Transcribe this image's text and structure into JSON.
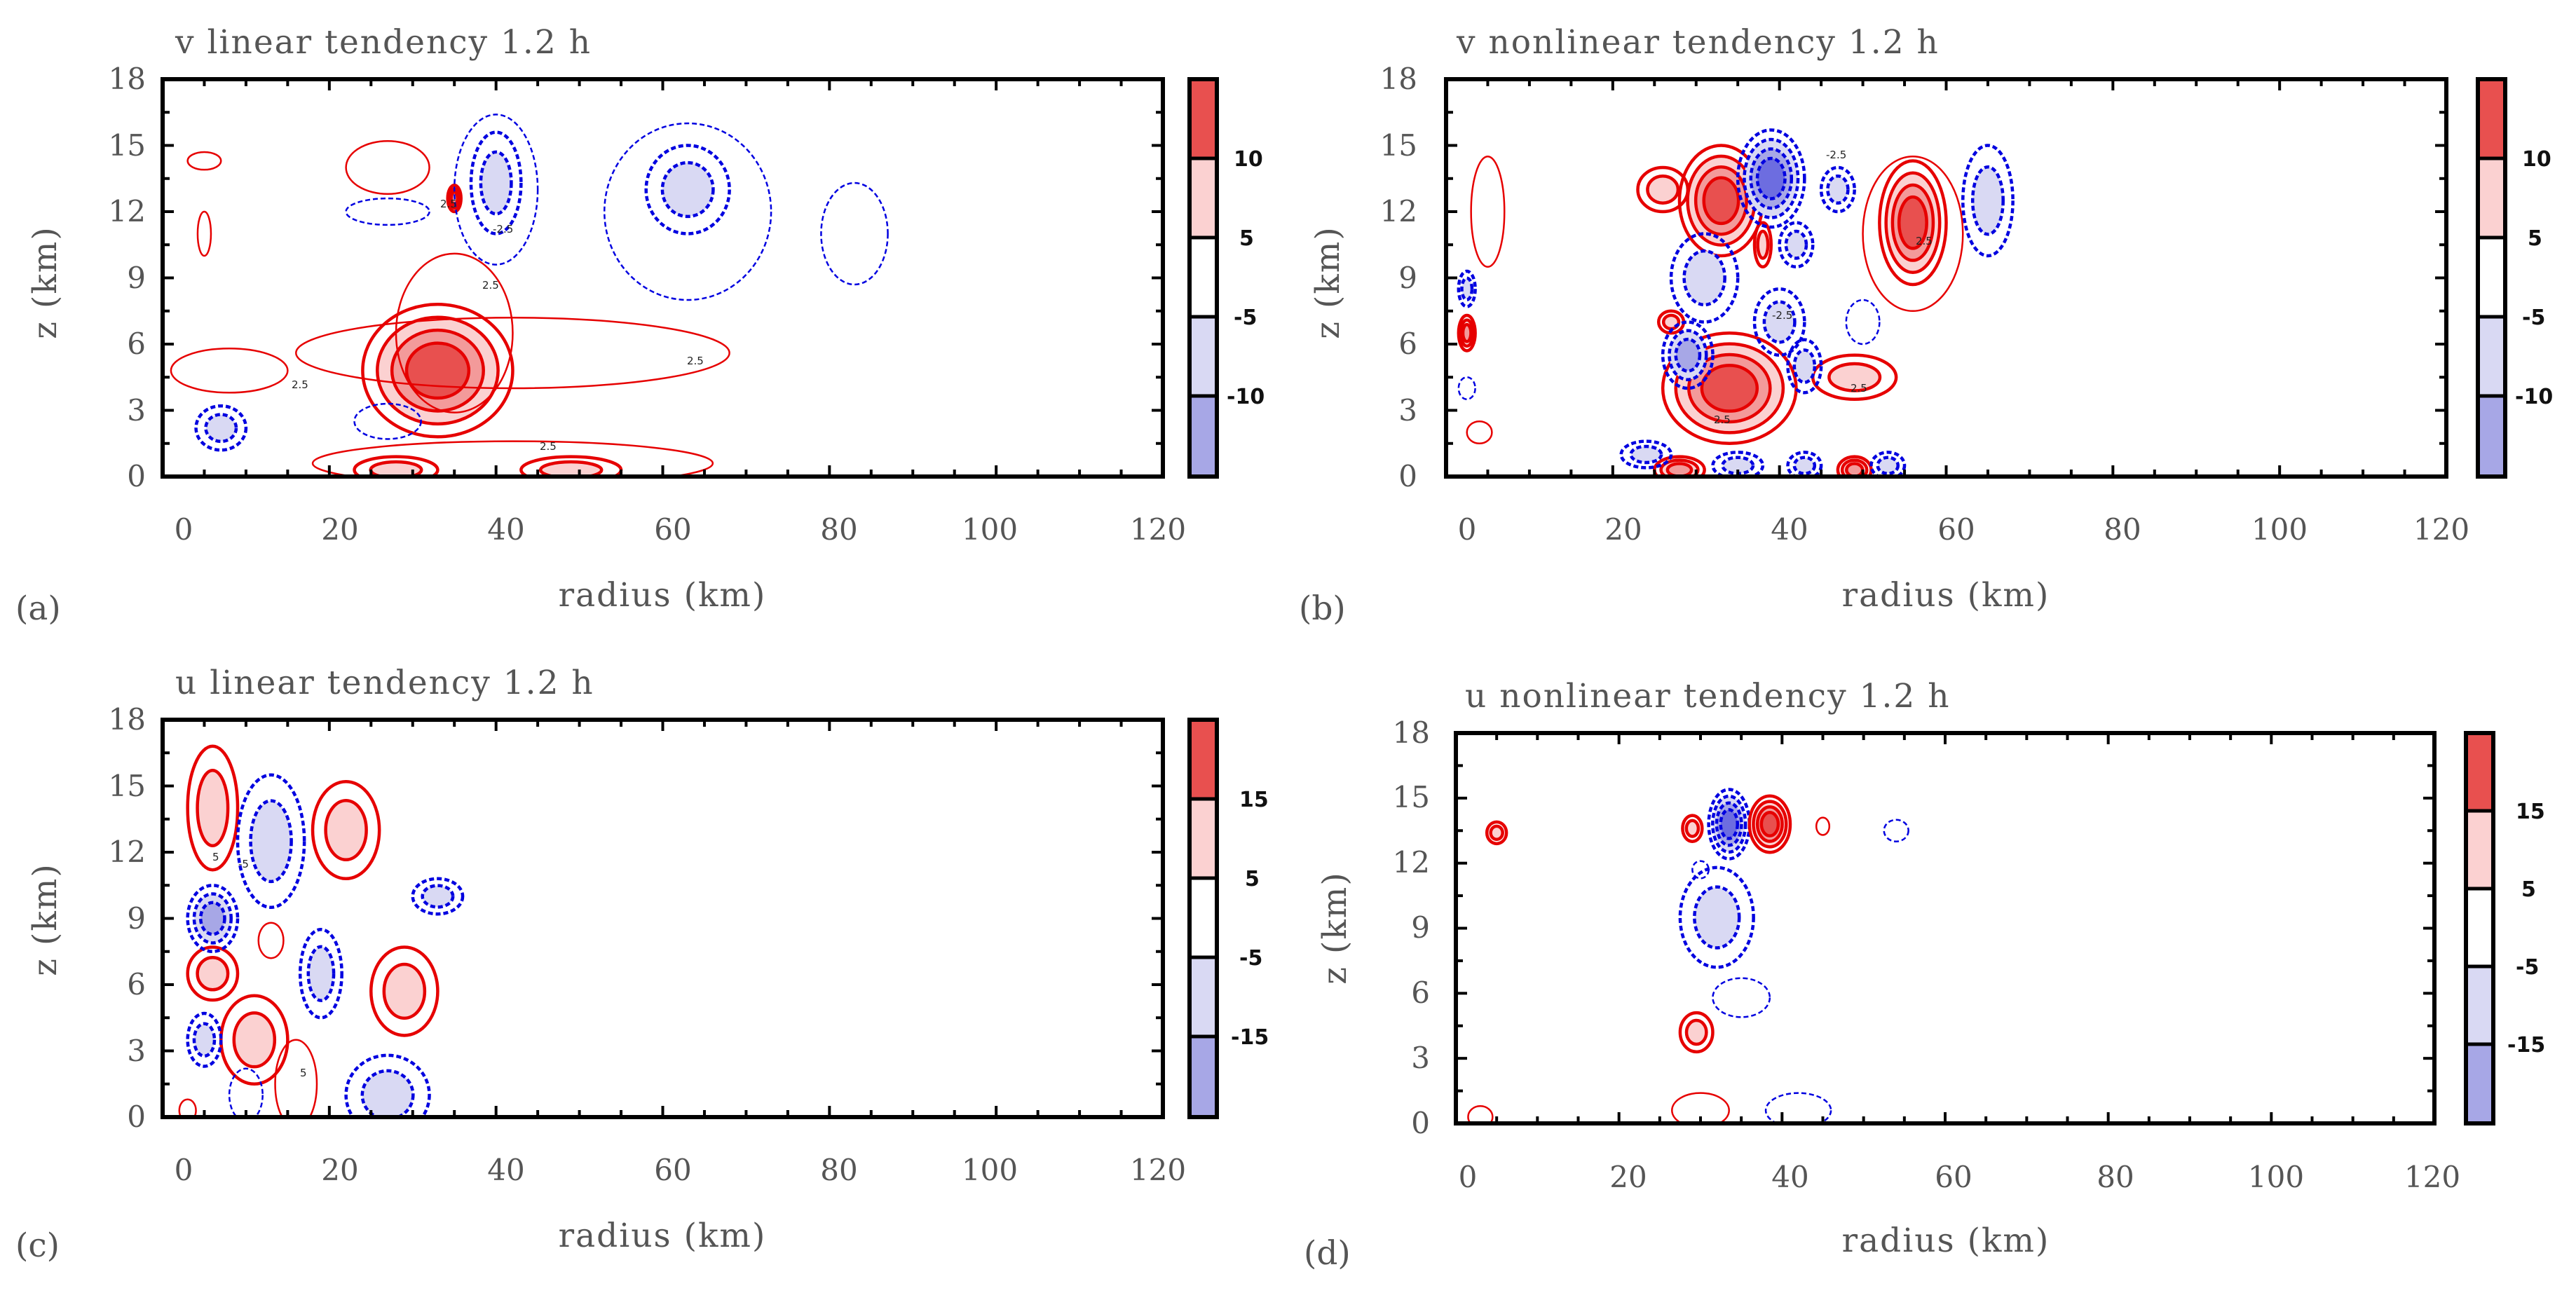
{
  "colors": {
    "red_strong": "#e8504f",
    "red_mid": "#f39a9a",
    "red_light": "#fbd1d1",
    "blue_light": "#d9d9f3",
    "blue_mid": "#a7a7e6",
    "blue_strong": "#6d6de0",
    "red_line": "#e60000",
    "blue_line": "#0000e0",
    "axis_text": "#555555"
  },
  "chart_data": [
    {
      "id": "a",
      "type": "contour",
      "panel_label": "(a)",
      "title": "v linear tendency 1.2 h",
      "xlabel": "radius (km)",
      "ylabel": "z (km)",
      "xlim": [
        0,
        120
      ],
      "ylim": [
        0,
        18
      ],
      "xticks": [
        "0",
        "20",
        "40",
        "60",
        "80",
        "100",
        "120"
      ],
      "yticks": [
        "0",
        "3",
        "6",
        "9",
        "12",
        "15",
        "18"
      ],
      "colorbar_labels": [
        "10",
        "5",
        "-5",
        "-10"
      ],
      "contour_labels": [
        "2.5",
        "2.5",
        "2.5",
        "2.5",
        "-2.5",
        "2.5"
      ],
      "features": [
        {
          "sign": "pos",
          "levels": 4,
          "x": 33,
          "y": 4.8,
          "rx": 9,
          "ry": 3.0
        },
        {
          "sign": "pos",
          "levels": 1,
          "x": 42,
          "y": 5.6,
          "rx": 26,
          "ry": 1.6
        },
        {
          "sign": "pos",
          "levels": 1,
          "x": 35,
          "y": 6.5,
          "rx": 7,
          "ry": 3.6
        },
        {
          "sign": "pos",
          "levels": 1,
          "x": 8,
          "y": 4.8,
          "rx": 7,
          "ry": 1.0
        },
        {
          "sign": "pos",
          "levels": 1,
          "x": 27,
          "y": 14,
          "rx": 5,
          "ry": 1.2
        },
        {
          "sign": "pos",
          "levels": 1,
          "x": 5,
          "y": 14.3,
          "rx": 2,
          "ry": 0.4
        },
        {
          "sign": "pos",
          "levels": 1,
          "x": 5,
          "y": 11,
          "rx": 0.8,
          "ry": 1.0
        },
        {
          "sign": "pos",
          "levels": 1,
          "x": 42,
          "y": 0.6,
          "rx": 24,
          "ry": 1.0
        },
        {
          "sign": "pos",
          "levels": 2,
          "x": 28,
          "y": 0.3,
          "rx": 5,
          "ry": 0.6
        },
        {
          "sign": "pos",
          "levels": 2,
          "x": 49,
          "y": 0.3,
          "rx": 6,
          "ry": 0.6
        },
        {
          "sign": "pos",
          "levels": 3,
          "x": 35,
          "y": 12.6,
          "rx": 0.8,
          "ry": 0.6
        },
        {
          "sign": "neg",
          "levels": 2,
          "x": 40,
          "y": 13.3,
          "rx": 3,
          "ry": 2.3
        },
        {
          "sign": "neg",
          "levels": 1,
          "x": 40,
          "y": 13,
          "rx": 5,
          "ry": 3.4
        },
        {
          "sign": "neg",
          "levels": 2,
          "x": 63,
          "y": 13,
          "rx": 5,
          "ry": 2.0
        },
        {
          "sign": "neg",
          "levels": 1,
          "x": 63,
          "y": 12,
          "rx": 10,
          "ry": 4.0
        },
        {
          "sign": "neg",
          "levels": 1,
          "x": 83,
          "y": 11,
          "rx": 4,
          "ry": 2.3
        },
        {
          "sign": "neg",
          "levels": 2,
          "x": 7,
          "y": 2.2,
          "rx": 3,
          "ry": 1.0
        },
        {
          "sign": "neg",
          "levels": 1,
          "x": 27,
          "y": 2.5,
          "rx": 4,
          "ry": 0.8
        },
        {
          "sign": "neg",
          "levels": 1,
          "x": 27,
          "y": 12,
          "rx": 5,
          "ry": 0.6
        }
      ]
    },
    {
      "id": "b",
      "type": "contour",
      "panel_label": "(b)",
      "title": "v nonlinear tendency 1.2 h",
      "xlabel": "radius (km)",
      "ylabel": "z (km)",
      "xlim": [
        0,
        120
      ],
      "ylim": [
        0,
        18
      ],
      "xticks": [
        "0",
        "20",
        "40",
        "60",
        "80",
        "100",
        "120"
      ],
      "yticks": [
        "0",
        "3",
        "6",
        "9",
        "12",
        "15",
        "18"
      ],
      "colorbar_labels": [
        "10",
        "5",
        "-5",
        "-10"
      ],
      "contour_labels": [
        "2.5",
        "-2.5",
        "2.5",
        "-2.5",
        "2.5"
      ],
      "features": [
        {
          "sign": "pos",
          "levels": 4,
          "x": 33,
          "y": 12.5,
          "rx": 5,
          "ry": 2.5
        },
        {
          "sign": "pos",
          "levels": 2,
          "x": 26,
          "y": 13,
          "rx": 3,
          "ry": 1.0
        },
        {
          "sign": "pos",
          "levels": 4,
          "x": 56,
          "y": 11.5,
          "rx": 4,
          "ry": 2.8
        },
        {
          "sign": "pos",
          "levels": 1,
          "x": 56,
          "y": 11,
          "rx": 6,
          "ry": 3.5
        },
        {
          "sign": "pos",
          "levels": 1,
          "x": 5,
          "y": 12,
          "rx": 2,
          "ry": 2.5
        },
        {
          "sign": "pos",
          "levels": 4,
          "x": 34,
          "y": 4,
          "rx": 8,
          "ry": 2.5
        },
        {
          "sign": "pos",
          "levels": 2,
          "x": 49,
          "y": 4.5,
          "rx": 5,
          "ry": 1.0
        },
        {
          "sign": "pos",
          "levels": 3,
          "x": 2.5,
          "y": 6.5,
          "rx": 1,
          "ry": 0.8
        },
        {
          "sign": "pos",
          "levels": 1,
          "x": 4,
          "y": 2,
          "rx": 1.5,
          "ry": 0.5
        },
        {
          "sign": "pos",
          "levels": 2,
          "x": 27,
          "y": 7,
          "rx": 1.5,
          "ry": 0.5
        },
        {
          "sign": "pos",
          "levels": 3,
          "x": 28,
          "y": 0.3,
          "rx": 3,
          "ry": 0.6
        },
        {
          "sign": "pos",
          "levels": 3,
          "x": 49,
          "y": 0.3,
          "rx": 2,
          "ry": 0.6
        },
        {
          "sign": "pos",
          "levels": 2,
          "x": 38,
          "y": 10.5,
          "rx": 1,
          "ry": 1.0
        },
        {
          "sign": "neg",
          "levels": 4,
          "x": 39,
          "y": 13.5,
          "rx": 4,
          "ry": 2.2
        },
        {
          "sign": "neg",
          "levels": 2,
          "x": 65,
          "y": 12.5,
          "rx": 3,
          "ry": 2.5
        },
        {
          "sign": "neg",
          "levels": 2,
          "x": 31,
          "y": 9,
          "rx": 4,
          "ry": 2.0
        },
        {
          "sign": "neg",
          "levels": 3,
          "x": 29,
          "y": 5.5,
          "rx": 3,
          "ry": 1.5
        },
        {
          "sign": "neg",
          "levels": 2,
          "x": 40,
          "y": 7,
          "rx": 3,
          "ry": 1.5
        },
        {
          "sign": "neg",
          "levels": 2,
          "x": 43,
          "y": 5,
          "rx": 2,
          "ry": 1.2
        },
        {
          "sign": "neg",
          "levels": 1,
          "x": 50,
          "y": 7,
          "rx": 2,
          "ry": 1.0
        },
        {
          "sign": "neg",
          "levels": 2,
          "x": 2.5,
          "y": 8.5,
          "rx": 1,
          "ry": 0.8
        },
        {
          "sign": "neg",
          "levels": 1,
          "x": 2.5,
          "y": 4,
          "rx": 1,
          "ry": 0.5
        },
        {
          "sign": "neg",
          "levels": 2,
          "x": 42,
          "y": 10.5,
          "rx": 2,
          "ry": 1.0
        },
        {
          "sign": "neg",
          "levels": 2,
          "x": 47,
          "y": 13,
          "rx": 2,
          "ry": 1.0
        },
        {
          "sign": "neg",
          "levels": 2,
          "x": 24,
          "y": 1,
          "rx": 3,
          "ry": 0.6
        },
        {
          "sign": "neg",
          "levels": 2,
          "x": 35,
          "y": 0.5,
          "rx": 3,
          "ry": 0.6
        },
        {
          "sign": "neg",
          "levels": 2,
          "x": 43,
          "y": 0.5,
          "rx": 2,
          "ry": 0.6
        },
        {
          "sign": "neg",
          "levels": 2,
          "x": 53,
          "y": 0.5,
          "rx": 2,
          "ry": 0.6
        }
      ]
    },
    {
      "id": "c",
      "type": "contour",
      "panel_label": "(c)",
      "title": "u linear tendency 1.2 h",
      "xlabel": "radius (km)",
      "ylabel": "z (km)",
      "xlim": [
        0,
        120
      ],
      "ylim": [
        0,
        18
      ],
      "xticks": [
        "0",
        "20",
        "40",
        "60",
        "80",
        "100",
        "120"
      ],
      "yticks": [
        "0",
        "3",
        "6",
        "9",
        "12",
        "15",
        "18"
      ],
      "colorbar_labels": [
        "15",
        "5",
        "-5",
        "-15"
      ],
      "contour_labels": [
        "5",
        "-5",
        "5"
      ],
      "features": [
        {
          "sign": "pos",
          "levels": 2,
          "x": 6,
          "y": 14,
          "rx": 3,
          "ry": 2.8
        },
        {
          "sign": "pos",
          "levels": 2,
          "x": 22,
          "y": 13,
          "rx": 4,
          "ry": 2.2
        },
        {
          "sign": "pos",
          "levels": 2,
          "x": 29,
          "y": 5.7,
          "rx": 4,
          "ry": 2.0
        },
        {
          "sign": "pos",
          "levels": 2,
          "x": 6,
          "y": 6.5,
          "rx": 3,
          "ry": 1.2
        },
        {
          "sign": "pos",
          "levels": 2,
          "x": 11,
          "y": 3.5,
          "rx": 4,
          "ry": 2.0
        },
        {
          "sign": "pos",
          "levels": 1,
          "x": 13,
          "y": 8,
          "rx": 1.5,
          "ry": 0.8
        },
        {
          "sign": "pos",
          "levels": 1,
          "x": 16,
          "y": 1.5,
          "rx": 2.5,
          "ry": 2.0
        },
        {
          "sign": "pos",
          "levels": 1,
          "x": 3,
          "y": 0.3,
          "rx": 1,
          "ry": 0.5
        },
        {
          "sign": "neg",
          "levels": 2,
          "x": 13,
          "y": 12.5,
          "rx": 4,
          "ry": 3.0
        },
        {
          "sign": "neg",
          "levels": 3,
          "x": 6,
          "y": 9,
          "rx": 3,
          "ry": 1.5
        },
        {
          "sign": "neg",
          "levels": 2,
          "x": 19,
          "y": 6.5,
          "rx": 2.5,
          "ry": 2.0
        },
        {
          "sign": "neg",
          "levels": 2,
          "x": 5,
          "y": 3.5,
          "rx": 2,
          "ry": 1.2
        },
        {
          "sign": "neg",
          "levels": 2,
          "x": 33,
          "y": 10,
          "rx": 3,
          "ry": 0.8
        },
        {
          "sign": "neg",
          "levels": 2,
          "x": 27,
          "y": 1,
          "rx": 5,
          "ry": 1.8
        },
        {
          "sign": "neg",
          "levels": 1,
          "x": 10,
          "y": 1,
          "rx": 2,
          "ry": 1.2
        }
      ]
    },
    {
      "id": "d",
      "type": "contour",
      "panel_label": "(d)",
      "title": "u nonlinear tendency 1.2 h",
      "xlabel": "radius (km)",
      "ylabel": "z (km)",
      "xlim": [
        0,
        120
      ],
      "ylim": [
        0,
        18
      ],
      "xticks": [
        "0",
        "20",
        "40",
        "60",
        "80",
        "100",
        "120"
      ],
      "yticks": [
        "0",
        "3",
        "6",
        "9",
        "12",
        "15",
        "18"
      ],
      "colorbar_labels": [
        "15",
        "5",
        "-5",
        "-15"
      ],
      "contour_labels": [],
      "features": [
        {
          "sign": "neg",
          "levels": 4,
          "x": 33.5,
          "y": 13.8,
          "rx": 2.5,
          "ry": 1.6
        },
        {
          "sign": "pos",
          "levels": 4,
          "x": 38.5,
          "y": 13.8,
          "rx": 2.5,
          "ry": 1.3
        },
        {
          "sign": "pos",
          "levels": 2,
          "x": 29,
          "y": 13.6,
          "rx": 1.2,
          "ry": 0.6
        },
        {
          "sign": "pos",
          "levels": 2,
          "x": 5,
          "y": 13.4,
          "rx": 1.2,
          "ry": 0.5
        },
        {
          "sign": "pos",
          "levels": 1,
          "x": 45,
          "y": 13.7,
          "rx": 0.8,
          "ry": 0.4
        },
        {
          "sign": "neg",
          "levels": 1,
          "x": 54,
          "y": 13.5,
          "rx": 1.5,
          "ry": 0.5
        },
        {
          "sign": "neg",
          "levels": 2,
          "x": 32,
          "y": 9.5,
          "rx": 4.5,
          "ry": 2.3
        },
        {
          "sign": "neg",
          "levels": 1,
          "x": 35,
          "y": 5.8,
          "rx": 3.5,
          "ry": 0.9
        },
        {
          "sign": "pos",
          "levels": 2,
          "x": 29.5,
          "y": 4.2,
          "rx": 2,
          "ry": 0.9
        },
        {
          "sign": "pos",
          "levels": 1,
          "x": 30,
          "y": 0.6,
          "rx": 3.5,
          "ry": 0.8
        },
        {
          "sign": "neg",
          "levels": 1,
          "x": 42,
          "y": 0.6,
          "rx": 4,
          "ry": 0.8
        },
        {
          "sign": "pos",
          "levels": 1,
          "x": 3,
          "y": 0.3,
          "rx": 1.5,
          "ry": 0.5
        },
        {
          "sign": "neg",
          "levels": 1,
          "x": 30,
          "y": 11.7,
          "rx": 1,
          "ry": 0.4
        }
      ]
    }
  ]
}
